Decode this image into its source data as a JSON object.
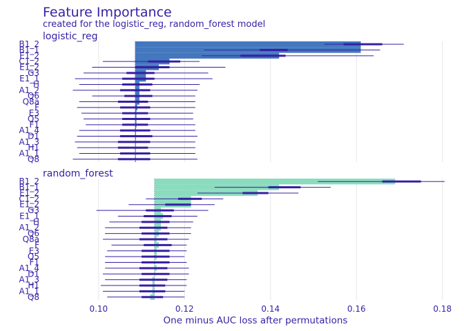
{
  "title": "Feature Importance",
  "subtitle": "created for the logistic_reg, random_forest model",
  "colors": {
    "text": "#371ea3",
    "grid": "#e6e6ea",
    "whisker": "#371ea3",
    "box": "#371ea3"
  },
  "chart_data": {
    "type": "bar",
    "orientation": "horizontal",
    "xlabel": "One minus AUC loss after permutations",
    "xlim": [
      0.092,
      0.181
    ],
    "xticks": [
      0.1,
      0.12,
      0.14,
      0.16,
      0.18
    ],
    "xtick_labels": [
      "0.10",
      "0.12",
      "0.14",
      "0.16",
      "0.18"
    ],
    "grid": true,
    "panels": [
      {
        "name": "logistic_reg",
        "color": "#4378bf",
        "baseline": 0.1085,
        "features": [
          "B1_2",
          "B1_1",
          "E1_2",
          "C1_2",
          "E1_2",
          "G3",
          "E1_1",
          "H",
          "A1_2",
          "Q6",
          "Q8a",
          "F",
          "E3",
          "Q5",
          "F1",
          "A1_4",
          "D1",
          "A1_3",
          "H1",
          "A1_1",
          "Q8"
        ],
        "values": [
          0.161,
          0.161,
          0.142,
          0.1165,
          0.114,
          0.111,
          0.111,
          0.1095,
          0.1095,
          0.1095,
          0.1095,
          0.109,
          0.1088,
          0.1088,
          0.1088,
          0.1087,
          0.1087,
          0.1086,
          0.1086,
          0.1086,
          0.1086
        ],
        "whisker_low": [
          0.1525,
          0.1245,
          0.124,
          0.101,
          0.0985,
          0.0965,
          0.0945,
          0.0955,
          0.094,
          0.0985,
          0.0955,
          0.095,
          0.096,
          0.0965,
          0.097,
          0.0955,
          0.095,
          0.0945,
          0.095,
          0.0955,
          0.094
        ],
        "whisker_high": [
          0.171,
          0.1655,
          0.164,
          0.1235,
          0.1295,
          0.1255,
          0.1265,
          0.1235,
          0.123,
          0.1225,
          0.1225,
          0.1225,
          0.122,
          0.122,
          0.1225,
          0.1225,
          0.123,
          0.1225,
          0.1225,
          0.1225,
          0.123
        ],
        "box_low": [
          0.157,
          0.1375,
          0.133,
          0.1115,
          0.1085,
          0.1065,
          0.1055,
          0.1055,
          0.105,
          0.106,
          0.1045,
          0.105,
          0.1055,
          0.1055,
          0.1055,
          0.105,
          0.105,
          0.1045,
          0.1045,
          0.105,
          0.1045
        ],
        "box_high": [
          0.166,
          0.144,
          0.1435,
          0.119,
          0.1165,
          0.113,
          0.113,
          0.1125,
          0.112,
          0.1125,
          0.1115,
          0.112,
          0.1115,
          0.112,
          0.1115,
          0.112,
          0.1125,
          0.112,
          0.1115,
          0.112,
          0.112
        ]
      },
      {
        "name": "random_forest",
        "color": "#8bdcbe",
        "baseline": 0.113,
        "features": [
          "B1_2",
          "B1_1",
          "E1_2",
          "C1_2",
          "E1_2",
          "G3",
          "E1_1",
          "H",
          "A1_2",
          "Q6",
          "Q8a",
          "F",
          "E3",
          "Q5",
          "F1",
          "A1_4",
          "D1",
          "A1_3",
          "H1",
          "A1_1",
          "Q8"
        ],
        "values": [
          0.169,
          0.142,
          0.137,
          0.1215,
          0.1215,
          0.1145,
          0.115,
          0.1145,
          0.1145,
          0.114,
          0.1135,
          0.114,
          0.1135,
          0.1135,
          0.113,
          0.1135,
          0.113,
          0.1125,
          0.1125,
          0.1125,
          0.112
        ],
        "whisker_low": [
          0.151,
          0.127,
          0.123,
          0.111,
          0.107,
          0.0995,
          0.1045,
          0.1025,
          0.1015,
          0.1015,
          0.101,
          0.103,
          0.102,
          0.1015,
          0.1015,
          0.1015,
          0.101,
          0.1015,
          0.1005,
          0.101,
          0.102
        ],
        "whisker_high": [
          0.1805,
          0.154,
          0.1465,
          0.129,
          0.127,
          0.1255,
          0.123,
          0.122,
          0.1215,
          0.1215,
          0.121,
          0.1205,
          0.1205,
          0.12,
          0.1205,
          0.121,
          0.121,
          0.1205,
          0.1205,
          0.12,
          0.12
        ],
        "box_low": [
          0.166,
          0.1395,
          0.1335,
          0.1185,
          0.1155,
          0.111,
          0.1105,
          0.11,
          0.1095,
          0.11,
          0.1095,
          0.1105,
          0.11,
          0.11,
          0.11,
          0.1095,
          0.11,
          0.1095,
          0.1095,
          0.1095,
          0.11
        ],
        "box_high": [
          0.175,
          0.147,
          0.1395,
          0.124,
          0.1215,
          0.1175,
          0.117,
          0.1165,
          0.116,
          0.1165,
          0.116,
          0.117,
          0.1165,
          0.1165,
          0.1165,
          0.116,
          0.1165,
          0.116,
          0.1155,
          0.1155,
          0.115
        ]
      }
    ]
  }
}
